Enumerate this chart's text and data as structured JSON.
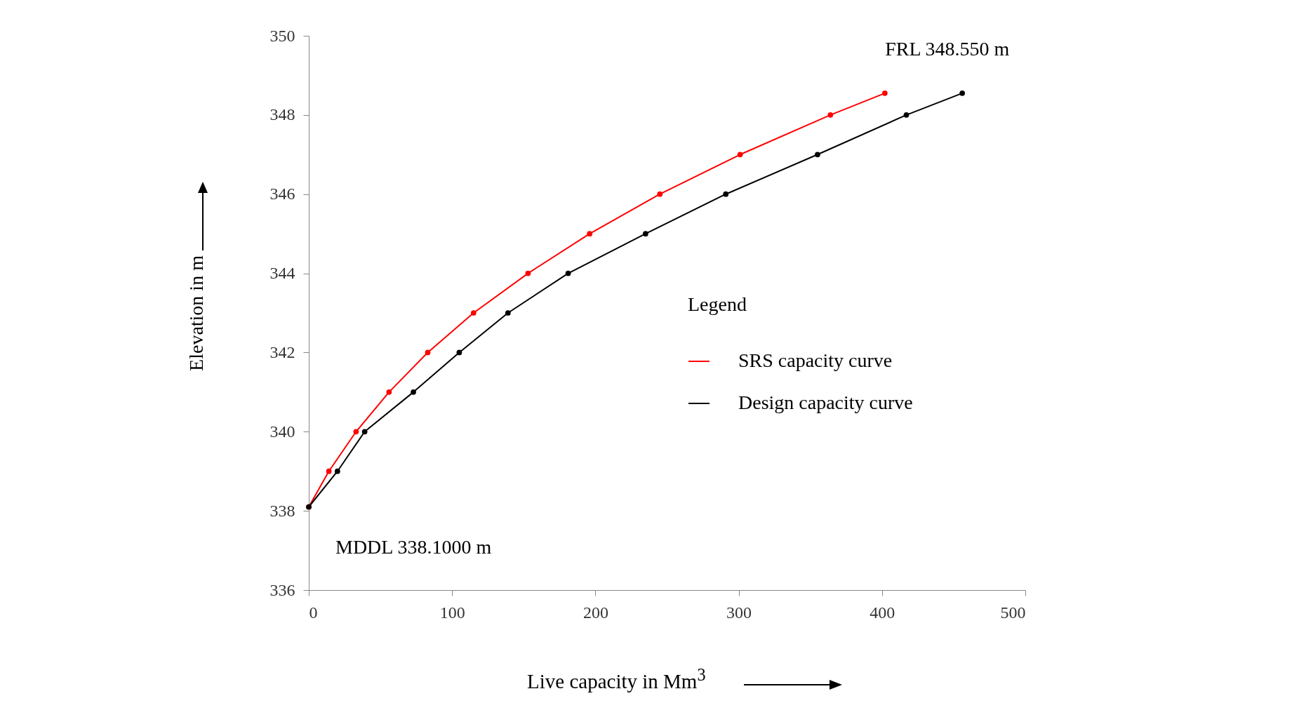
{
  "chart_data": {
    "type": "line",
    "xlabel": "Live capacity in Mm$^{3}$",
    "ylabel": "Elevation in m",
    "legend_title": "Legend",
    "xlim": [
      0,
      500
    ],
    "xticks": [
      0,
      100,
      200,
      300,
      400,
      500
    ],
    "ylim": [
      336,
      350
    ],
    "yticks": [
      336,
      338,
      340,
      342,
      344,
      346,
      348,
      350
    ],
    "grid": false,
    "legend": "right",
    "marker": "circle",
    "line_style": "solid",
    "annotations": [
      {
        "text": "FRL 348.550 m",
        "x": 456,
        "y": 348.55
      },
      {
        "text": "MDDL 338.1000 m",
        "x": 0,
        "y": 338.1
      }
    ],
    "series": [
      {
        "name": "SRS capacity curve",
        "color": "#ff0000",
        "x": [
          0,
          14,
          33,
          56,
          83,
          115,
          153,
          196,
          245,
          301,
          364,
          402
        ],
        "values": [
          338.1,
          339,
          340,
          341,
          342,
          343,
          344,
          345,
          346,
          347,
          348,
          348.55
        ]
      },
      {
        "name": "Design capacity curve",
        "color": "#000000",
        "x": [
          0,
          20,
          39,
          73,
          105,
          139,
          181,
          235,
          291,
          355,
          417,
          456
        ],
        "values": [
          338.1,
          339,
          340,
          341,
          342,
          343,
          344,
          345,
          346,
          347,
          348,
          348.55
        ]
      }
    ]
  }
}
